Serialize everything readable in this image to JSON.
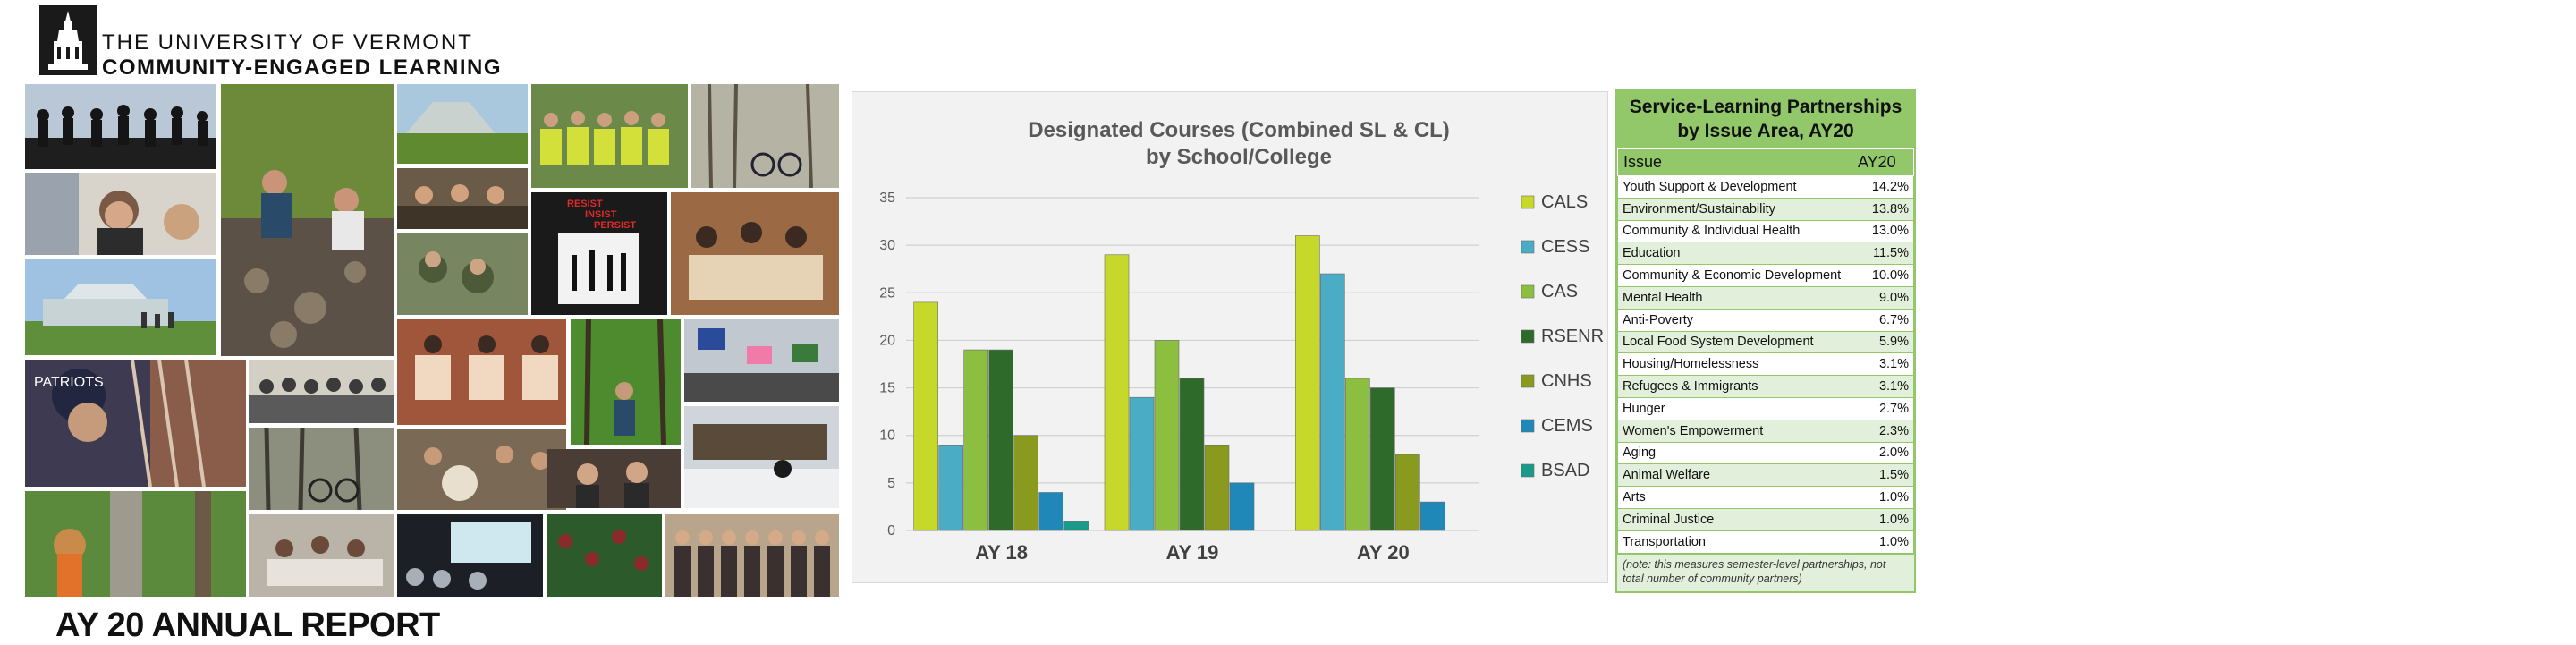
{
  "header": {
    "university": "THE UNIVERSITY OF VERMONT",
    "department": "COMMUNITY-ENGAGED LEARNING"
  },
  "report_title": "AY 20 ANNUAL REPORT",
  "chart_data": {
    "type": "bar",
    "title": [
      "Designated Courses (Combined SL & CL)",
      "by School/College"
    ],
    "categories": [
      "AY 18",
      "AY 19",
      "AY 20"
    ],
    "ylim": [
      0,
      35
    ],
    "yticks": [
      0,
      5,
      10,
      15,
      20,
      25,
      30,
      35
    ],
    "grid": true,
    "legend_position": "right",
    "series": [
      {
        "name": "CALS",
        "color": "#c6d92a",
        "values": [
          24,
          29,
          31
        ]
      },
      {
        "name": "CESS",
        "color": "#4bacc6",
        "values": [
          9,
          14,
          27
        ]
      },
      {
        "name": "CAS",
        "color": "#8cbf3f",
        "values": [
          19,
          20,
          16
        ]
      },
      {
        "name": "RSENR",
        "color": "#2e6b2a",
        "values": [
          19,
          16,
          15
        ]
      },
      {
        "name": "CNHS",
        "color": "#8a9a1f",
        "values": [
          10,
          9,
          8
        ]
      },
      {
        "name": "CEMS",
        "color": "#1f88b8",
        "values": [
          4,
          5,
          3
        ]
      },
      {
        "name": "BSAD",
        "color": "#1a9a8a",
        "values": [
          1,
          0,
          0
        ]
      }
    ]
  },
  "partnerships_table": {
    "title": "Service-Learning Partnerships by Issue Area, AY20",
    "col_issue": "Issue",
    "col_year": "AY20",
    "rows": [
      {
        "issue": "Youth Support & Development",
        "value": "14.2%"
      },
      {
        "issue": "Environment/Sustainability",
        "value": "13.8%"
      },
      {
        "issue": "Community & Individual Health",
        "value": "13.0%"
      },
      {
        "issue": "Education",
        "value": "11.5%"
      },
      {
        "issue": "Community & Economic Development",
        "value": "10.0%"
      },
      {
        "issue": "Mental Health",
        "value": "9.0%"
      },
      {
        "issue": "Anti-Poverty",
        "value": "6.7%"
      },
      {
        "issue": "Local Food System Development",
        "value": "5.9%"
      },
      {
        "issue": "Housing/Homelessness",
        "value": "3.1%"
      },
      {
        "issue": "Refugees & Immigrants",
        "value": "3.1%"
      },
      {
        "issue": "Hunger",
        "value": "2.7%"
      },
      {
        "issue": "Women's Empowerment",
        "value": "2.3%"
      },
      {
        "issue": "Aging",
        "value": "2.0%"
      },
      {
        "issue": "Animal Welfare",
        "value": "1.5%"
      },
      {
        "issue": "Arts",
        "value": "1.0%"
      },
      {
        "issue": "Criminal Justice",
        "value": "1.0%"
      },
      {
        "issue": "Transportation",
        "value": "1.0%"
      }
    ],
    "note": "(note: this measures semester-level partnerships, not total number of community partners)"
  },
  "collage": {
    "poster_text": [
      "RESIST",
      "INSIST",
      "PERSIST"
    ]
  },
  "colors": {
    "table_green": "#92c86a",
    "table_light": "#e2efda",
    "chart_bg": "#f2f2f2"
  }
}
